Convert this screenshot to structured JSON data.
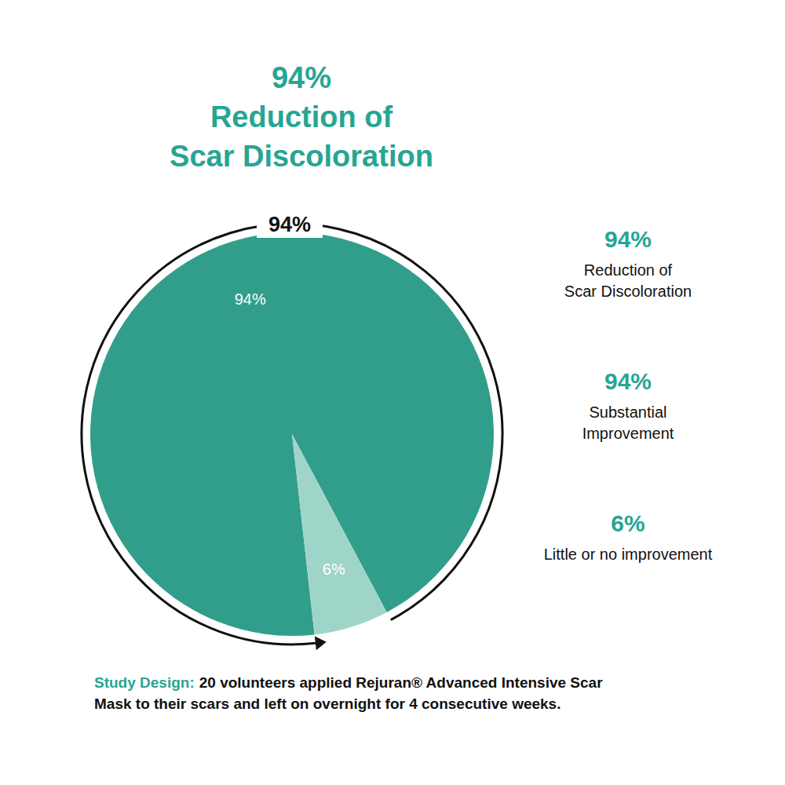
{
  "chart_data": {
    "type": "pie",
    "title": "94%\nReduction of\nScar Discoloration",
    "categories": [
      "Substantial\nImprovement",
      "Little or no improvement"
    ],
    "values": [
      94,
      6
    ],
    "value_labels": [
      "94%",
      "6%"
    ],
    "colors": [
      "#319e8b",
      "#9fd5c8"
    ],
    "data_labels": true,
    "legend": "right",
    "highlight": {
      "value": 94,
      "label": "94%",
      "text": "Reduction of\nScar Discoloration"
    },
    "study_design": {
      "label": "Study Design:",
      "text": "20 volunteers applied Rejuran® Advanced Intensive Scar\nMask to their scars and left on overnight for 4 consecutive weeks."
    }
  }
}
